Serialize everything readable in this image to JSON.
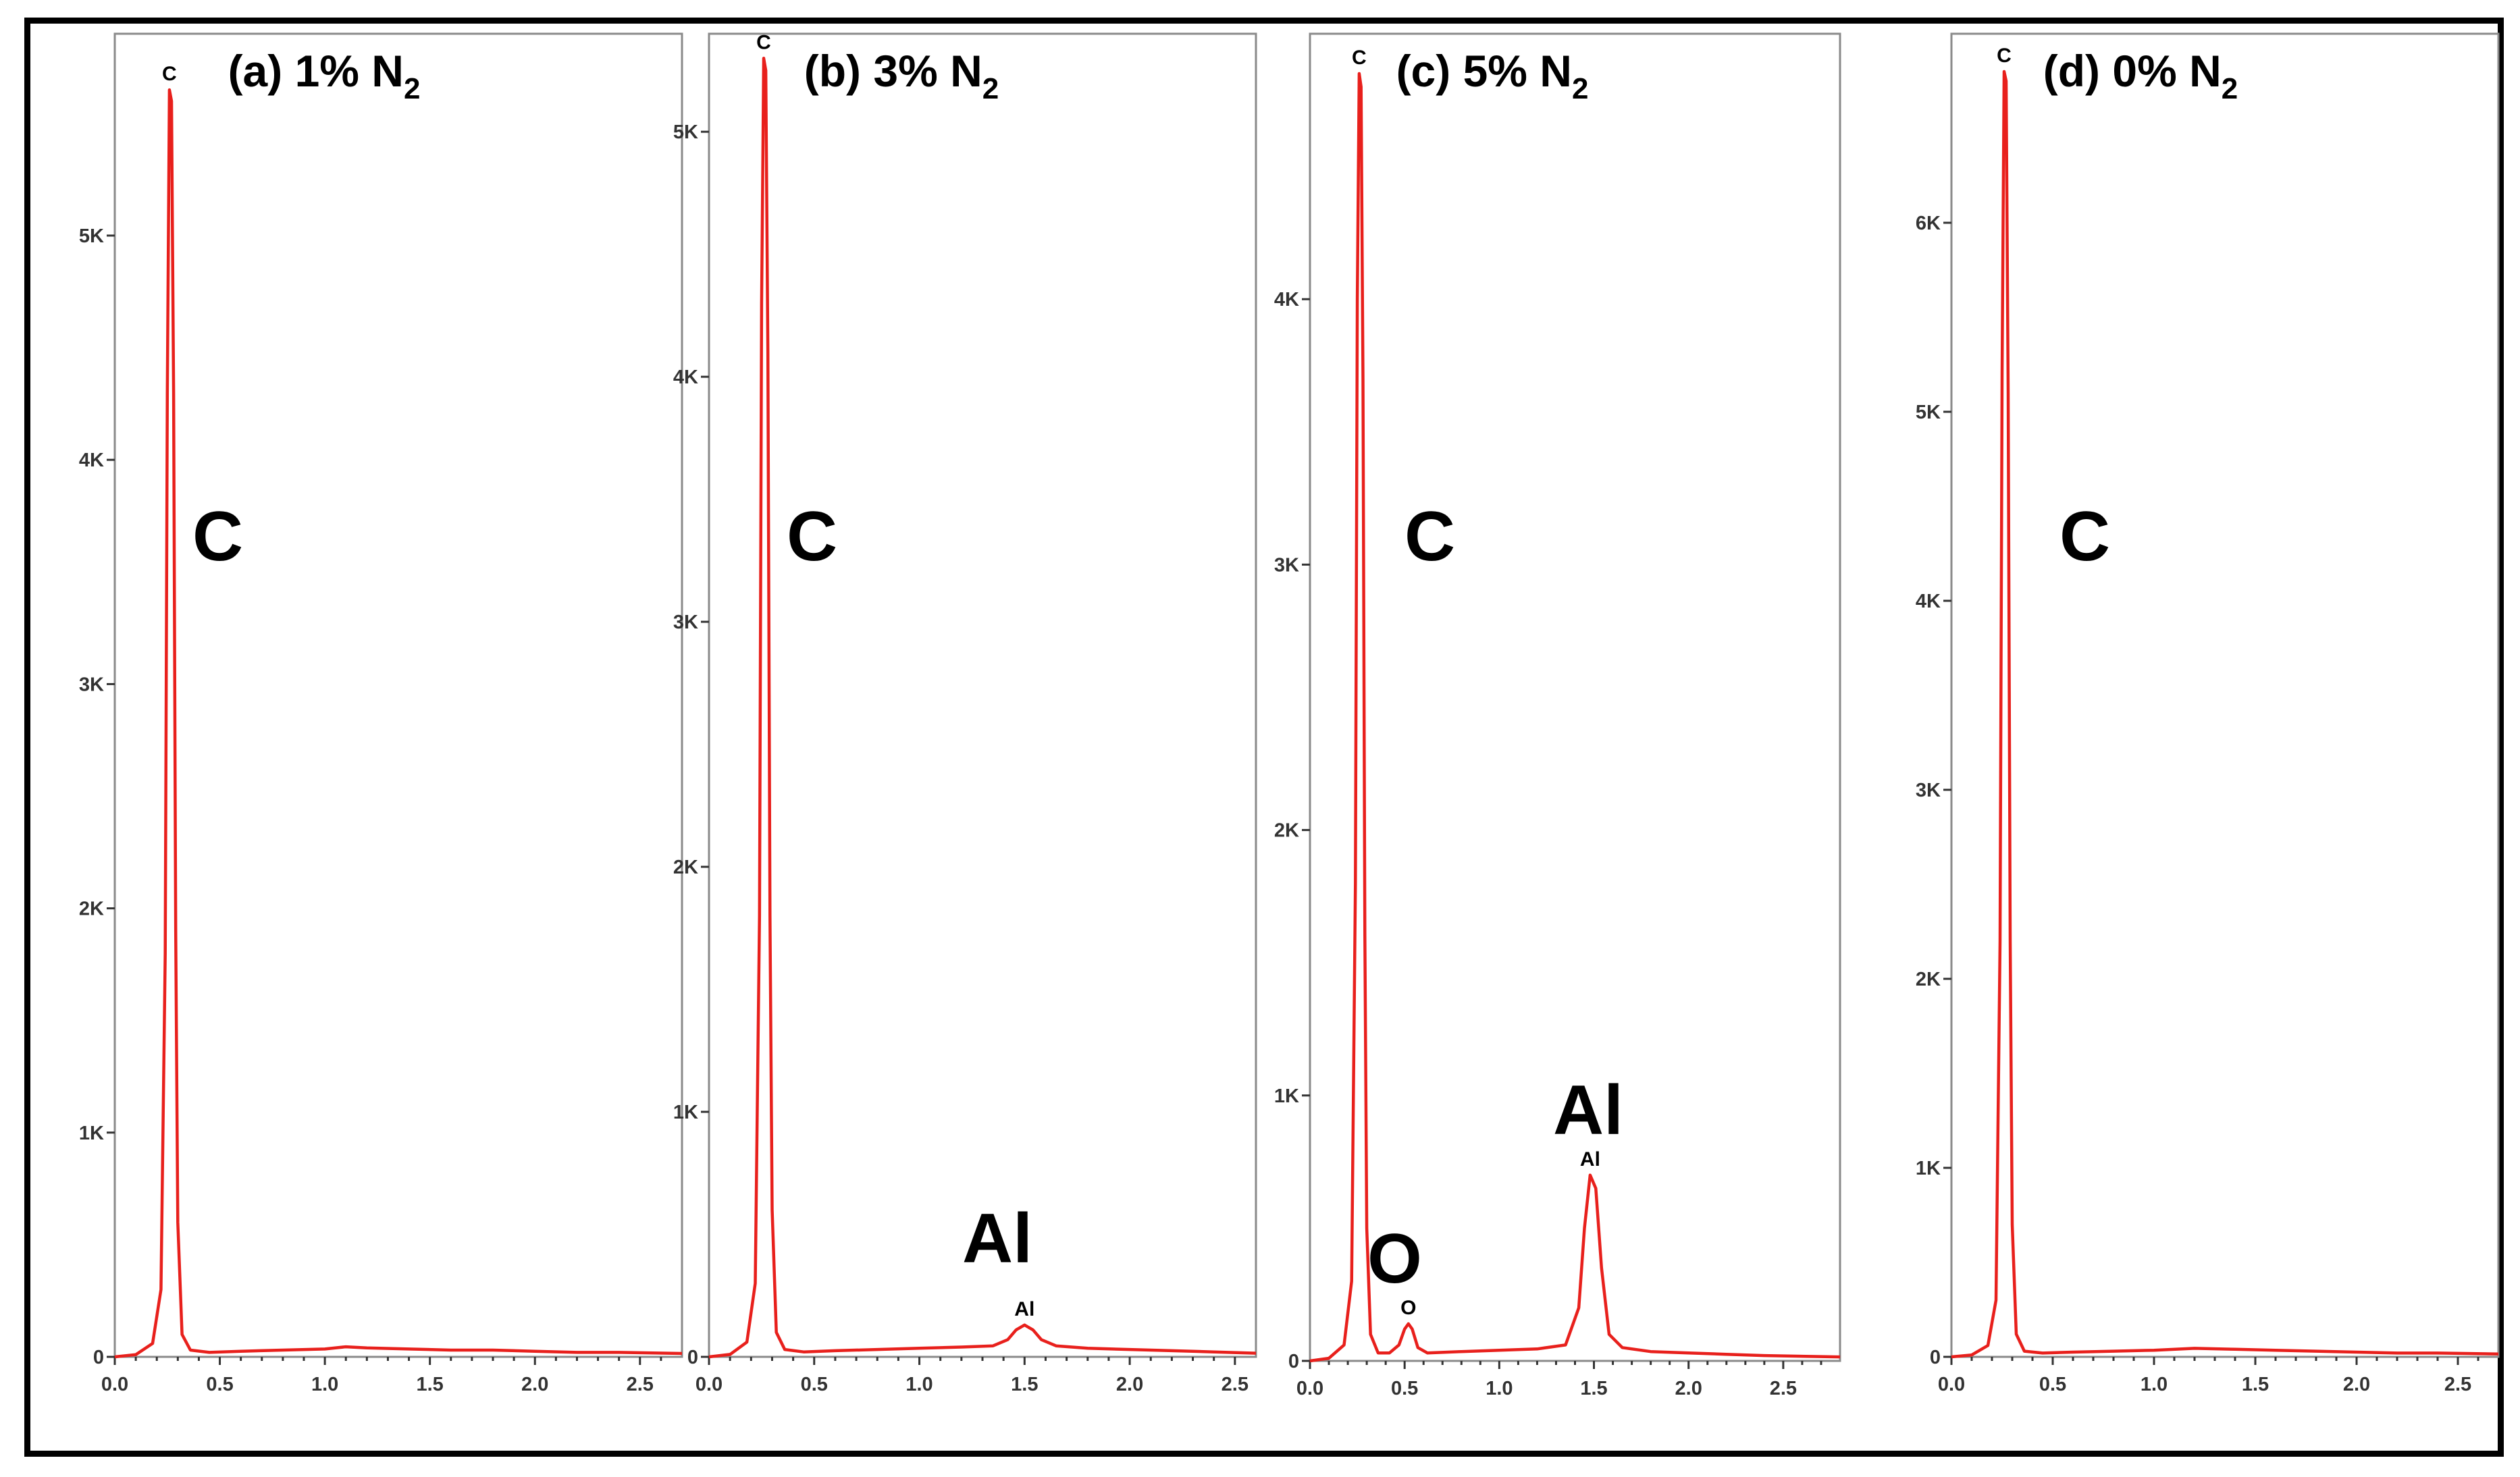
{
  "chart_data": [
    {
      "type": "line",
      "title": "(a) 1% N",
      "title_subscript": "2",
      "xlim": [
        0,
        2.7
      ],
      "ylim": [
        0,
        5900
      ],
      "x_ticks": [
        0.0,
        0.5,
        1.0,
        1.5,
        2.0,
        2.5
      ],
      "x_tick_labels": [
        "0.0",
        "0.5",
        "1.0",
        "1.5",
        "2.0",
        "2.5"
      ],
      "y_ticks": [
        0,
        1000,
        2000,
        3000,
        4000,
        5000
      ],
      "y_tick_labels": [
        "0",
        "1K",
        "2K",
        "3K",
        "4K",
        "5K"
      ],
      "series": [
        {
          "x": [
            0.0,
            0.1,
            0.18,
            0.22,
            0.24,
            0.25,
            0.26,
            0.27,
            0.28,
            0.29,
            0.3,
            0.32,
            0.36,
            0.45,
            0.6,
            0.8,
            1.0,
            1.1,
            1.2,
            1.4,
            1.6,
            1.8,
            2.0,
            2.2,
            2.4,
            2.7
          ],
          "y": [
            0,
            10,
            60,
            300,
            1800,
            4300,
            5650,
            5600,
            4300,
            1900,
            600,
            100,
            30,
            20,
            25,
            30,
            35,
            45,
            40,
            35,
            30,
            30,
            25,
            20,
            20,
            15
          ]
        }
      ],
      "peak_labels": [
        {
          "text": "C",
          "x": 0.26,
          "y": 5650
        }
      ],
      "element_labels": [
        "C"
      ]
    },
    {
      "type": "line",
      "title": "(b) 3% N",
      "title_subscript": "2",
      "xlim": [
        0,
        2.6
      ],
      "ylim": [
        0,
        5400
      ],
      "x_ticks": [
        0.0,
        0.5,
        1.0,
        1.5,
        2.0,
        2.5
      ],
      "x_tick_labels": [
        "0.0",
        "0.5",
        "1.0",
        "1.5",
        "2.0",
        "2.5"
      ],
      "y_ticks": [
        0,
        1000,
        2000,
        3000,
        4000,
        5000
      ],
      "y_tick_labels": [
        "0",
        "1K",
        "2K",
        "3K",
        "4K",
        "5K"
      ],
      "series": [
        {
          "x": [
            0.0,
            0.1,
            0.18,
            0.22,
            0.24,
            0.25,
            0.26,
            0.27,
            0.28,
            0.29,
            0.3,
            0.32,
            0.36,
            0.45,
            0.6,
            0.8,
            1.0,
            1.2,
            1.35,
            1.42,
            1.46,
            1.5,
            1.54,
            1.58,
            1.65,
            1.8,
            2.0,
            2.2,
            2.4,
            2.6
          ],
          "y": [
            0,
            10,
            60,
            300,
            1800,
            4300,
            5300,
            5250,
            4100,
            1800,
            600,
            100,
            30,
            20,
            25,
            30,
            35,
            40,
            45,
            70,
            110,
            130,
            110,
            70,
            45,
            35,
            30,
            25,
            20,
            15
          ]
        }
      ],
      "peak_labels": [
        {
          "text": "C",
          "x": 0.26,
          "y": 5300
        },
        {
          "text": "Al",
          "x": 1.5,
          "y": 130
        }
      ],
      "element_labels": [
        "C",
        "Al"
      ]
    },
    {
      "type": "line",
      "title": "(c) 5% N",
      "title_subscript": "2",
      "xlim": [
        0,
        2.8
      ],
      "ylim": [
        0,
        5000
      ],
      "x_ticks": [
        0.0,
        0.5,
        1.0,
        1.5,
        2.0,
        2.5
      ],
      "x_tick_labels": [
        "0.0",
        "0.5",
        "1.0",
        "1.5",
        "2.0",
        "2.5"
      ],
      "y_ticks": [
        0,
        1000,
        2000,
        3000,
        4000
      ],
      "y_tick_labels": [
        "0",
        "1K",
        "2K",
        "3K",
        "4K"
      ],
      "series": [
        {
          "x": [
            0.0,
            0.1,
            0.18,
            0.22,
            0.24,
            0.25,
            0.26,
            0.27,
            0.28,
            0.29,
            0.3,
            0.32,
            0.36,
            0.42,
            0.47,
            0.5,
            0.52,
            0.54,
            0.57,
            0.62,
            0.8,
            1.0,
            1.2,
            1.35,
            1.42,
            1.45,
            1.48,
            1.51,
            1.54,
            1.58,
            1.65,
            1.8,
            2.0,
            2.2,
            2.4,
            2.8
          ],
          "y": [
            0,
            10,
            60,
            300,
            1800,
            4000,
            4850,
            4800,
            3700,
            1600,
            500,
            100,
            30,
            30,
            60,
            120,
            140,
            120,
            50,
            30,
            35,
            40,
            45,
            60,
            200,
            500,
            700,
            650,
            350,
            100,
            50,
            35,
            30,
            25,
            20,
            15
          ]
        }
      ],
      "peak_labels": [
        {
          "text": "C",
          "x": 0.26,
          "y": 4850
        },
        {
          "text": "O",
          "x": 0.52,
          "y": 140
        },
        {
          "text": "Al",
          "x": 1.48,
          "y": 700
        }
      ],
      "element_labels": [
        "C",
        "O",
        "Al"
      ]
    },
    {
      "type": "line",
      "title": "(d) 0% N",
      "title_subscript": "2",
      "xlim": [
        0,
        2.7
      ],
      "ylim": [
        0,
        7000
      ],
      "x_ticks": [
        0.0,
        0.5,
        1.0,
        1.5,
        2.0,
        2.5
      ],
      "x_tick_labels": [
        "0.0",
        "0.5",
        "1.0",
        "1.5",
        "2.0",
        "2.5"
      ],
      "y_ticks": [
        0,
        1000,
        2000,
        3000,
        4000,
        5000,
        6000
      ],
      "y_tick_labels": [
        "0",
        "1K",
        "2K",
        "3K",
        "4K",
        "5K",
        "6K"
      ],
      "series": [
        {
          "x": [
            0.0,
            0.1,
            0.18,
            0.22,
            0.24,
            0.25,
            0.26,
            0.27,
            0.28,
            0.29,
            0.3,
            0.32,
            0.36,
            0.45,
            0.6,
            0.8,
            1.0,
            1.2,
            1.4,
            1.6,
            1.8,
            2.0,
            2.2,
            2.4,
            2.7
          ],
          "y": [
            0,
            10,
            60,
            300,
            2200,
            5200,
            6800,
            6750,
            5100,
            2200,
            700,
            120,
            30,
            20,
            25,
            30,
            35,
            45,
            40,
            35,
            30,
            25,
            20,
            20,
            15
          ]
        }
      ],
      "peak_labels": [
        {
          "text": "C",
          "x": 0.26,
          "y": 6800
        }
      ],
      "element_labels": [
        "C"
      ]
    }
  ]
}
